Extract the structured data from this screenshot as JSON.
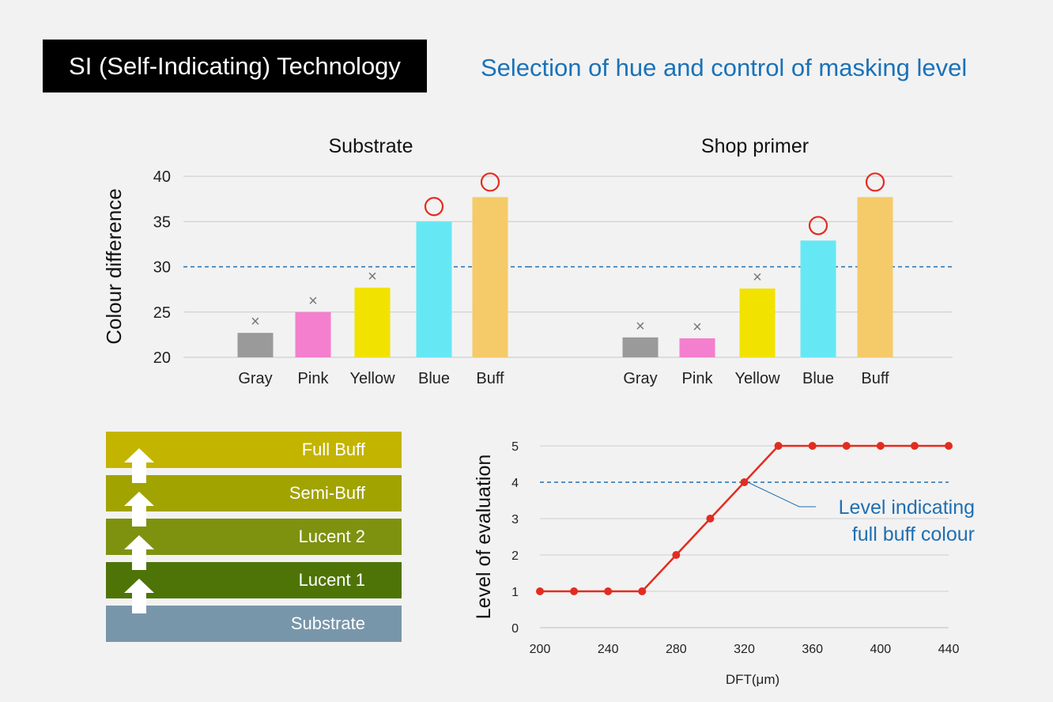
{
  "header": {
    "title": "SI (Self-Indicating) Technology",
    "subtitle": "Selection of hue and control of masking level"
  },
  "colors": {
    "gray": "#9a9a9a",
    "pink": "#f47fce",
    "yellow": "#f2e200",
    "blue": "#66e8f4",
    "buff": "#f5cb69",
    "threshold": "#1f6fb2",
    "circle": "#e32c20",
    "cross": "#777777",
    "line": "#e32c20",
    "full_buff": "#c3b400",
    "semi_buff": "#a1a300",
    "lucent2": "#7e9210",
    "lucent1": "#4e7408",
    "substrate": "#7896aa"
  },
  "legend_marks": {
    "pass": "○",
    "fail": "×"
  },
  "chart_data": [
    {
      "type": "bar",
      "title": "Substrate",
      "ylabel": "Colour difference",
      "ylim": [
        20,
        40
      ],
      "yticks": [
        "20",
        "25",
        "30",
        "35",
        "40"
      ],
      "threshold": 30,
      "categories": [
        "Gray",
        "Pink",
        "Yellow",
        "Blue",
        "Buff"
      ],
      "values": [
        22.7,
        25.0,
        27.7,
        35.0,
        37.7
      ],
      "marks": [
        "×",
        "×",
        "×",
        "○",
        "○"
      ]
    },
    {
      "type": "bar",
      "title": "Shop primer",
      "ylabel": "Colour difference",
      "ylim": [
        20,
        40
      ],
      "threshold": 30,
      "categories": [
        "Gray",
        "Pink",
        "Yellow",
        "Blue",
        "Buff"
      ],
      "values": [
        22.2,
        22.1,
        27.6,
        32.9,
        37.7
      ],
      "marks": [
        "×",
        "×",
        "×",
        "○",
        "○"
      ]
    },
    {
      "type": "line",
      "xlabel": "DFT(μm)",
      "ylabel": "Level of evaluation",
      "xlim": [
        200,
        440
      ],
      "ylim": [
        0,
        5
      ],
      "xticks": [
        "200",
        "240",
        "280",
        "320",
        "360",
        "400",
        "440"
      ],
      "yticks": [
        "0",
        "1",
        "2",
        "3",
        "4",
        "5"
      ],
      "x": [
        200,
        220,
        240,
        260,
        280,
        300,
        320,
        340,
        360,
        380,
        400,
        420,
        440
      ],
      "y": [
        1,
        1,
        1,
        1,
        2,
        3,
        4,
        5,
        5,
        5,
        5,
        5,
        5
      ],
      "threshold": 4,
      "annotation": [
        "Level indicating",
        "full buff colour"
      ]
    }
  ],
  "layers": [
    {
      "label": "Full Buff",
      "color": "#c3b400"
    },
    {
      "label": "Semi-Buff",
      "color": "#a1a300"
    },
    {
      "label": "Lucent 2",
      "color": "#7e9210"
    },
    {
      "label": "Lucent 1",
      "color": "#4e7408"
    },
    {
      "label": "Substrate",
      "color": "#7896aa"
    }
  ]
}
